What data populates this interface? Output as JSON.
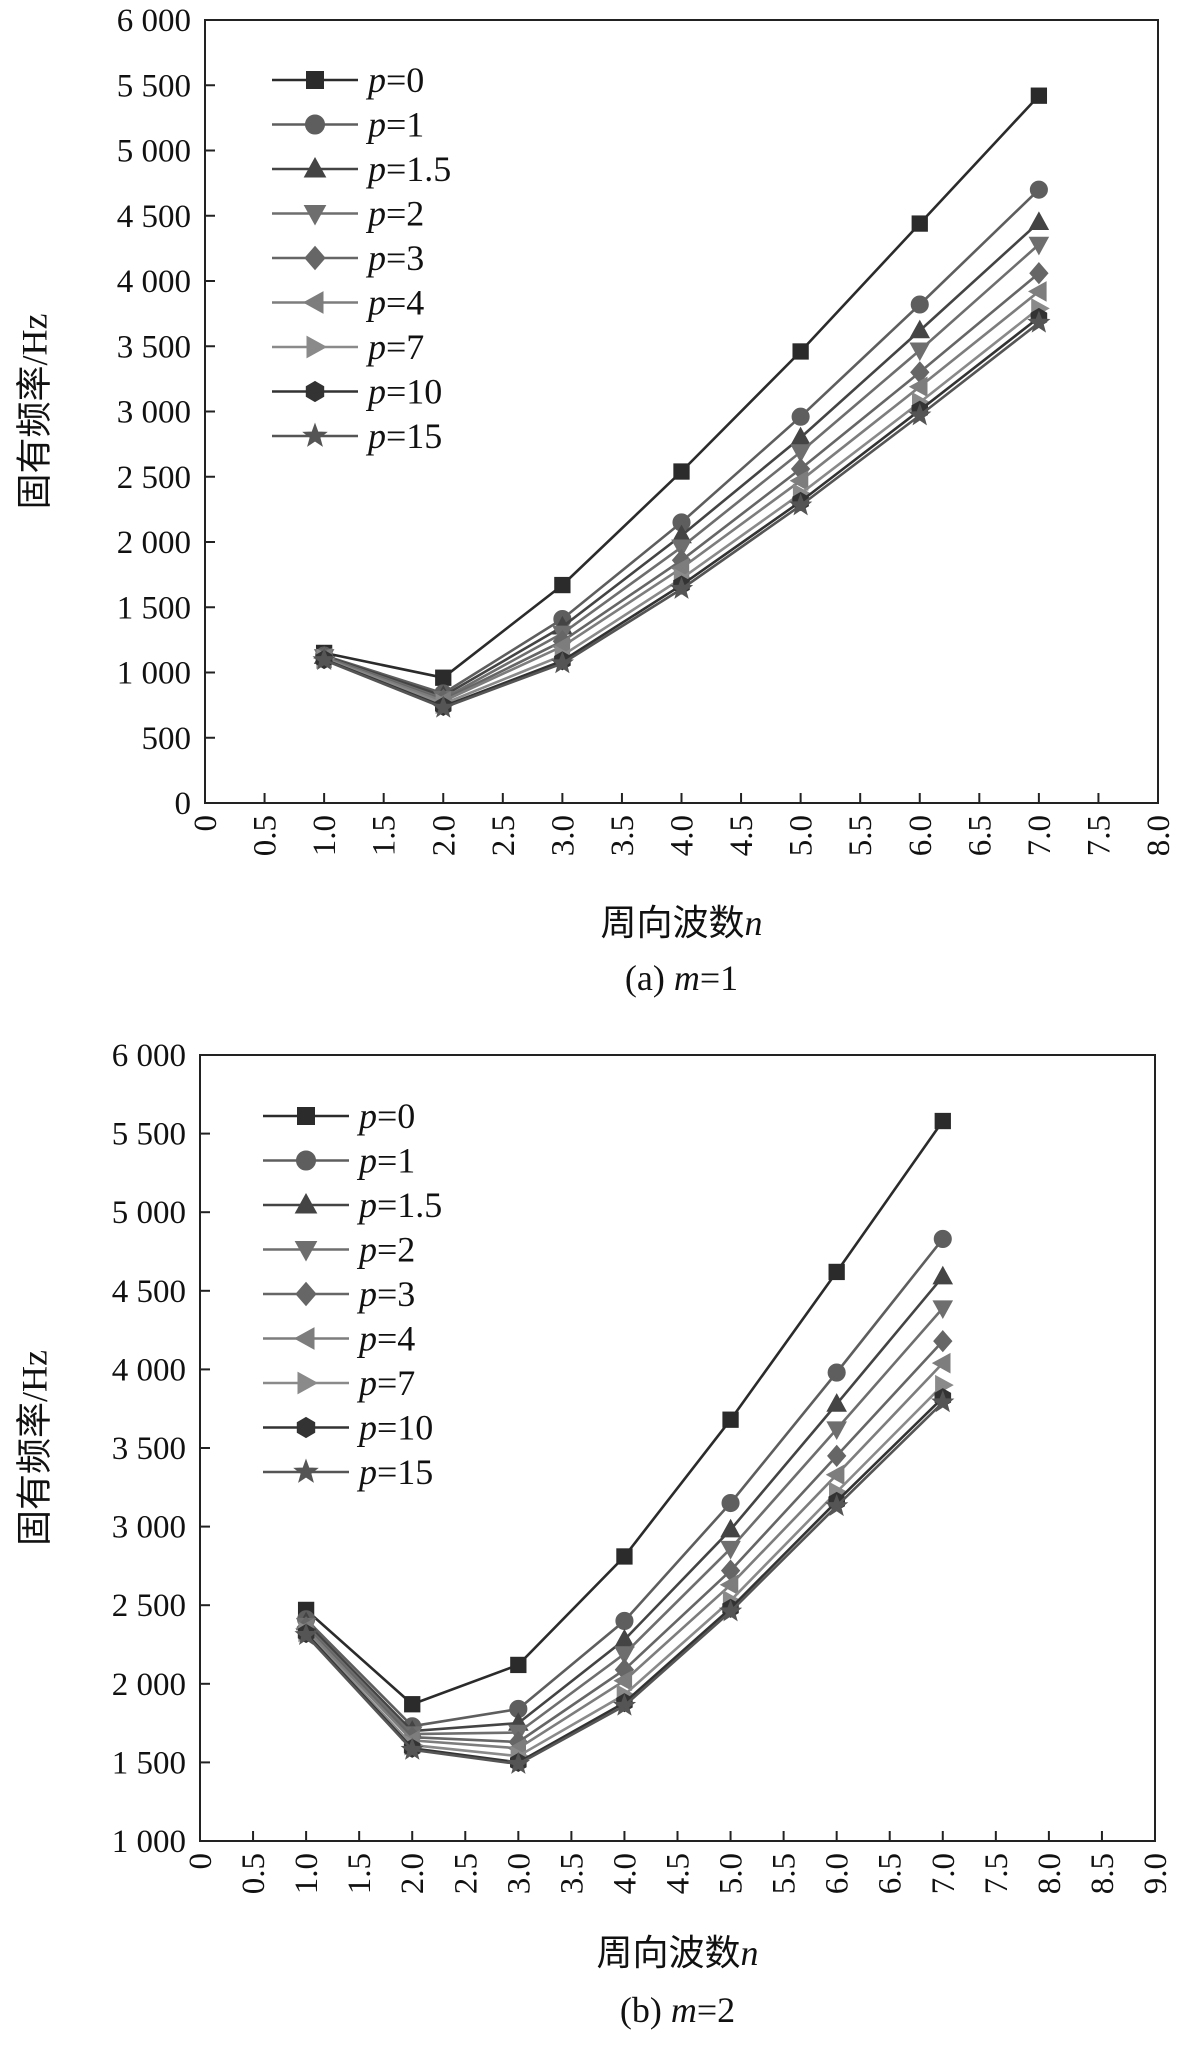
{
  "chart_data": [
    {
      "type": "line",
      "caption": "(a) m=1",
      "caption_prefix": "(a)",
      "caption_var": "m",
      "caption_value": "=1",
      "xlabel": "周向波数",
      "xlabel_var": "n",
      "ylabel": "固有频率/Hz",
      "xlim": [
        0,
        8
      ],
      "ylim": [
        0,
        6000
      ],
      "xticks": [
        "0",
        "0.5",
        "1.0",
        "1.5",
        "2.0",
        "2.5",
        "3.0",
        "3.5",
        "4.0",
        "4.5",
        "5.0",
        "5.5",
        "6.0",
        "6.5",
        "7.0",
        "7.5",
        "8.0"
      ],
      "yticks": [
        "0",
        "500",
        "1 000",
        "1 500",
        "2 000",
        "2 500",
        "3 000",
        "3 500",
        "4 000",
        "4 500",
        "5 000",
        "5 500",
        "6 000"
      ],
      "x": [
        1,
        2,
        3,
        4,
        5,
        6,
        7
      ],
      "series": [
        {
          "name": "p=0",
          "p": "0",
          "marker": "square",
          "color": "#2b2b2b",
          "values": [
            1150,
            960,
            1670,
            2540,
            3460,
            4440,
            5420
          ]
        },
        {
          "name": "p=1",
          "p": "1",
          "marker": "circle",
          "color": "#5e5e5e",
          "values": [
            1130,
            840,
            1410,
            2150,
            2960,
            3820,
            4700
          ]
        },
        {
          "name": "p=1.5",
          "p": "1.5",
          "marker": "triangle",
          "color": "#444444",
          "values": [
            1125,
            820,
            1350,
            2050,
            2800,
            3620,
            4450
          ]
        },
        {
          "name": "p=2",
          "p": "2",
          "marker": "tri-down",
          "color": "#6e6e6e",
          "values": [
            1120,
            800,
            1300,
            1960,
            2690,
            3470,
            4280
          ]
        },
        {
          "name": "p=3",
          "p": "3",
          "marker": "diamond",
          "color": "#666666",
          "values": [
            1115,
            790,
            1240,
            1860,
            2560,
            3300,
            4060
          ]
        },
        {
          "name": "p=4",
          "p": "4",
          "marker": "tri-left",
          "color": "#7d7d7d",
          "values": [
            1110,
            780,
            1200,
            1800,
            2470,
            3190,
            3920
          ]
        },
        {
          "name": "p=7",
          "p": "7",
          "marker": "tri-right",
          "color": "#8a8a8a",
          "values": [
            1105,
            760,
            1130,
            1720,
            2370,
            3070,
            3790
          ]
        },
        {
          "name": "p=10",
          "p": "10",
          "marker": "hexagon",
          "color": "#333333",
          "values": [
            1100,
            740,
            1090,
            1670,
            2310,
            3010,
            3720
          ]
        },
        {
          "name": "p=15",
          "p": "15",
          "marker": "star",
          "color": "#555555",
          "values": [
            1095,
            730,
            1070,
            1640,
            2280,
            2970,
            3680
          ]
        }
      ]
    },
    {
      "type": "line",
      "caption": "(b) m=2",
      "caption_prefix": "(b)",
      "caption_var": "m",
      "caption_value": "=2",
      "xlabel": "周向波数",
      "xlabel_var": "n",
      "ylabel": "固有频率/Hz",
      "xlim": [
        0,
        9
      ],
      "ylim": [
        1000,
        6000
      ],
      "xticks": [
        "0",
        "0.5",
        "1.0",
        "1.5",
        "2.0",
        "2.5",
        "3.0",
        "3.5",
        "4.0",
        "4.5",
        "5.0",
        "5.5",
        "6.0",
        "6.5",
        "7.0",
        "7.5",
        "8.0",
        "8.5",
        "9.0"
      ],
      "yticks": [
        "1 000",
        "1 500",
        "2 000",
        "2 500",
        "3 000",
        "3 500",
        "4 000",
        "4 500",
        "5 000",
        "5 500",
        "6 000"
      ],
      "x": [
        1,
        2,
        3,
        4,
        5,
        6,
        7
      ],
      "series": [
        {
          "name": "p=0",
          "p": "0",
          "marker": "square",
          "color": "#2b2b2b",
          "values": [
            2470,
            1870,
            2120,
            2810,
            3680,
            4620,
            5580
          ]
        },
        {
          "name": "p=1",
          "p": "1",
          "marker": "circle",
          "color": "#5e5e5e",
          "values": [
            2410,
            1730,
            1840,
            2400,
            3150,
            3980,
            4830
          ]
        },
        {
          "name": "p=1.5",
          "p": "1.5",
          "marker": "triangle",
          "color": "#444444",
          "values": [
            2390,
            1700,
            1750,
            2280,
            2980,
            3780,
            4590
          ]
        },
        {
          "name": "p=2",
          "p": "2",
          "marker": "tri-down",
          "color": "#6e6e6e",
          "values": [
            2370,
            1680,
            1690,
            2190,
            2860,
            3620,
            4390
          ]
        },
        {
          "name": "p=3",
          "p": "3",
          "marker": "diamond",
          "color": "#666666",
          "values": [
            2360,
            1660,
            1630,
            2090,
            2720,
            3450,
            4180
          ]
        },
        {
          "name": "p=4",
          "p": "4",
          "marker": "tri-left",
          "color": "#7d7d7d",
          "values": [
            2350,
            1640,
            1590,
            2020,
            2630,
            3330,
            4040
          ]
        },
        {
          "name": "p=7",
          "p": "7",
          "marker": "tri-right",
          "color": "#8a8a8a",
          "values": [
            2330,
            1610,
            1540,
            1930,
            2530,
            3220,
            3900
          ]
        },
        {
          "name": "p=10",
          "p": "10",
          "marker": "hexagon",
          "color": "#333333",
          "values": [
            2320,
            1590,
            1500,
            1880,
            2480,
            3160,
            3820
          ]
        },
        {
          "name": "p=15",
          "p": "15",
          "marker": "star",
          "color": "#555555",
          "values": [
            2310,
            1580,
            1490,
            1860,
            2460,
            3130,
            3790
          ]
        }
      ]
    }
  ]
}
